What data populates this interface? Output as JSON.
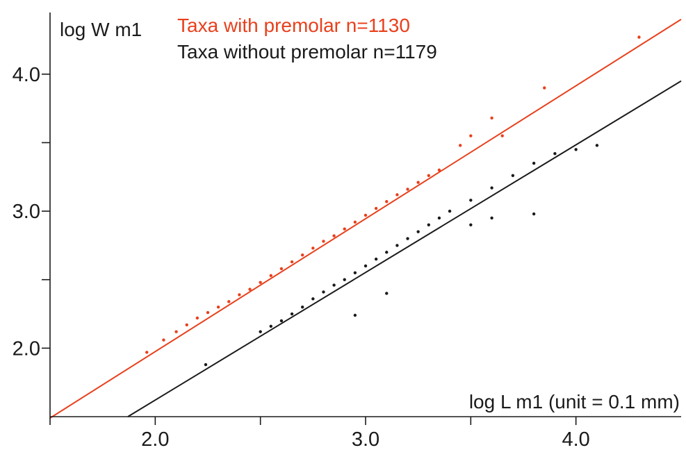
{
  "chart_data": {
    "type": "scatter",
    "xlabel": "log L m1 (unit = 0.1 mm)",
    "ylabel": "log W m1",
    "xlim": [
      1.5,
      4.5
    ],
    "ylim": [
      1.5,
      4.45
    ],
    "x_ticks": [
      {
        "value": 2.0,
        "label": "2.0"
      },
      {
        "value": 3.0,
        "label": "3.0"
      },
      {
        "value": 4.0,
        "label": "4.0"
      }
    ],
    "x_minor_ticks": [
      1.5,
      2.5,
      3.5
    ],
    "y_ticks": [
      {
        "value": 2.0,
        "label": "2.0"
      },
      {
        "value": 3.0,
        "label": "3.0"
      },
      {
        "value": 4.0,
        "label": "4.0"
      }
    ],
    "y_minor_ticks": [
      2.5,
      3.5
    ],
    "grid": false,
    "legend_position": "top-left",
    "series": [
      {
        "name": "Taxa with premolar n=1130",
        "color": "#e8401c",
        "n": 1130,
        "regression": {
          "x": [
            1.5,
            4.5
          ],
          "y": [
            1.49,
            4.4
          ]
        },
        "x": [
          1.96,
          2.04,
          2.1,
          2.15,
          2.2,
          2.25,
          2.3,
          2.35,
          2.4,
          2.45,
          2.5,
          2.55,
          2.6,
          2.65,
          2.7,
          2.75,
          2.8,
          2.85,
          2.9,
          2.95,
          3.0,
          3.05,
          3.1,
          3.15,
          3.2,
          3.25,
          3.3,
          3.35,
          3.45,
          3.5,
          3.6,
          3.65,
          3.85,
          4.3
        ],
        "y": [
          1.97,
          2.06,
          2.12,
          2.17,
          2.22,
          2.26,
          2.3,
          2.34,
          2.39,
          2.43,
          2.48,
          2.53,
          2.58,
          2.63,
          2.68,
          2.73,
          2.78,
          2.82,
          2.87,
          2.92,
          2.97,
          3.02,
          3.07,
          3.12,
          3.16,
          3.21,
          3.26,
          3.3,
          3.48,
          3.55,
          3.68,
          3.55,
          3.9,
          4.27
        ]
      },
      {
        "name": "Taxa without premolar n=1179",
        "color": "#1a1a1a",
        "n": 1179,
        "regression": {
          "x": [
            1.87,
            4.5
          ],
          "y": [
            1.5,
            3.95
          ]
        },
        "x": [
          2.24,
          2.5,
          2.55,
          2.6,
          2.65,
          2.7,
          2.75,
          2.8,
          2.85,
          2.9,
          2.95,
          3.0,
          3.05,
          3.1,
          3.15,
          3.2,
          3.25,
          3.3,
          3.35,
          3.4,
          3.5,
          3.6,
          3.7,
          3.8,
          3.9,
          4.0,
          4.1,
          3.5,
          3.6,
          3.8,
          2.95,
          3.1
        ],
        "y": [
          1.88,
          2.12,
          2.16,
          2.2,
          2.25,
          2.3,
          2.36,
          2.41,
          2.46,
          2.5,
          2.55,
          2.6,
          2.65,
          2.7,
          2.75,
          2.8,
          2.85,
          2.9,
          2.95,
          3.0,
          3.08,
          3.17,
          3.26,
          3.35,
          3.42,
          3.45,
          3.48,
          2.9,
          2.95,
          2.98,
          2.24,
          2.4
        ]
      }
    ]
  }
}
